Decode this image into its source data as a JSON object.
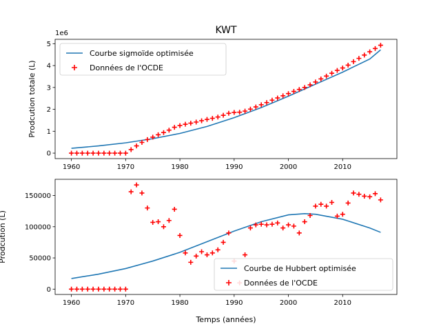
{
  "chart_data": [
    {
      "type": "line",
      "title": "KWT",
      "xlabel": "",
      "ylabel": "Prodcution totale (L)",
      "offset_text": "1e6",
      "xlim": [
        1957,
        2020
      ],
      "ylim": [
        -250000,
        5200000
      ],
      "xticks": [
        1960,
        1970,
        1980,
        1990,
        2000,
        2010
      ],
      "yticks": [
        0,
        1000000,
        2000000,
        3000000,
        4000000,
        5000000
      ],
      "ytick_labels": [
        "0",
        "1",
        "2",
        "3",
        "4",
        "5"
      ],
      "legend_position": "top-left",
      "series": [
        {
          "name": "Courbe sigmoïde optimisée",
          "kind": "line",
          "color": "#1f77b4",
          "x": [
            1960,
            1965,
            1970,
            1975,
            1980,
            1985,
            1990,
            1995,
            2000,
            2005,
            2010,
            2015,
            2017
          ],
          "y": [
            220000,
            330000,
            470000,
            660000,
            900000,
            1220000,
            1620000,
            2080000,
            2600000,
            3150000,
            3700000,
            4300000,
            4720000
          ]
        },
        {
          "name": "Données de l'OCDE",
          "kind": "scatter",
          "marker": "+",
          "color": "#ff0000",
          "x": [
            1960,
            1961,
            1962,
            1963,
            1964,
            1965,
            1966,
            1967,
            1968,
            1969,
            1970,
            1971,
            1972,
            1973,
            1974,
            1975,
            1976,
            1977,
            1978,
            1979,
            1980,
            1981,
            1982,
            1983,
            1984,
            1985,
            1986,
            1987,
            1988,
            1989,
            1990,
            1991,
            1992,
            1993,
            1994,
            1995,
            1996,
            1997,
            1998,
            1999,
            2000,
            2001,
            2002,
            2003,
            2004,
            2005,
            2006,
            2007,
            2008,
            2009,
            2010,
            2011,
            2012,
            2013,
            2014,
            2015,
            2016,
            2017
          ],
          "y": [
            0,
            0,
            0,
            0,
            0,
            0,
            0,
            0,
            0,
            0,
            0,
            160000,
            330000,
            490000,
            620000,
            730000,
            840000,
            940000,
            1050000,
            1180000,
            1260000,
            1320000,
            1370000,
            1420000,
            1480000,
            1540000,
            1590000,
            1650000,
            1730000,
            1820000,
            1860000,
            1870000,
            1920000,
            2010000,
            2110000,
            2210000,
            2310000,
            2420000,
            2520000,
            2620000,
            2720000,
            2820000,
            2910000,
            3000000,
            3120000,
            3250000,
            3390000,
            3520000,
            3650000,
            3780000,
            3890000,
            4020000,
            4180000,
            4330000,
            4480000,
            4630000,
            4780000,
            4930000
          ]
        }
      ]
    },
    {
      "type": "line",
      "title": "",
      "xlabel": "Temps (années)",
      "ylabel": "Prodcution (L)",
      "xlim": [
        1957,
        2020
      ],
      "ylim": [
        -8500,
        176000
      ],
      "xticks": [
        1960,
        1970,
        1980,
        1990,
        2000,
        2010
      ],
      "yticks": [
        0,
        50000,
        100000,
        150000
      ],
      "ytick_labels": [
        "0",
        "50000",
        "100000",
        "150000"
      ],
      "legend_position": "lower-right",
      "series": [
        {
          "name": "Courbe de Hubbert optimisée",
          "kind": "line",
          "color": "#1f77b4",
          "x": [
            1960,
            1965,
            1970,
            1975,
            1980,
            1985,
            1990,
            1995,
            2000,
            2003,
            2005,
            2010,
            2015,
            2017
          ],
          "y": [
            17000,
            24000,
            33000,
            45000,
            59000,
            76000,
            93000,
            108000,
            119000,
            121000,
            120000,
            112000,
            98000,
            91000
          ]
        },
        {
          "name": "Données de l'OCDE",
          "kind": "scatter",
          "marker": "+",
          "color": "#ff0000",
          "x": [
            1960,
            1961,
            1962,
            1963,
            1964,
            1965,
            1966,
            1967,
            1968,
            1969,
            1970,
            1971,
            1972,
            1973,
            1974,
            1975,
            1976,
            1977,
            1978,
            1979,
            1980,
            1981,
            1982,
            1983,
            1984,
            1985,
            1986,
            1987,
            1988,
            1989,
            1990,
            1991,
            1992,
            1993,
            1994,
            1995,
            1996,
            1997,
            1998,
            1999,
            2000,
            2001,
            2002,
            2003,
            2004,
            2005,
            2006,
            2007,
            2008,
            2009,
            2010,
            2011,
            2012,
            2013,
            2014,
            2015,
            2016,
            2017
          ],
          "y": [
            0,
            0,
            0,
            0,
            0,
            0,
            0,
            0,
            0,
            0,
            0,
            156000,
            167000,
            154000,
            130000,
            107000,
            108000,
            100000,
            110000,
            128000,
            86000,
            58000,
            43000,
            53000,
            60000,
            55000,
            58000,
            63000,
            75000,
            90000,
            45000,
            10000,
            55000,
            98000,
            103000,
            104000,
            103000,
            104000,
            106000,
            98000,
            103000,
            101000,
            90000,
            108000,
            118000,
            133000,
            136000,
            133000,
            139000,
            117000,
            120000,
            138000,
            154000,
            152000,
            149000,
            148000,
            153000,
            143000
          ]
        }
      ]
    }
  ]
}
